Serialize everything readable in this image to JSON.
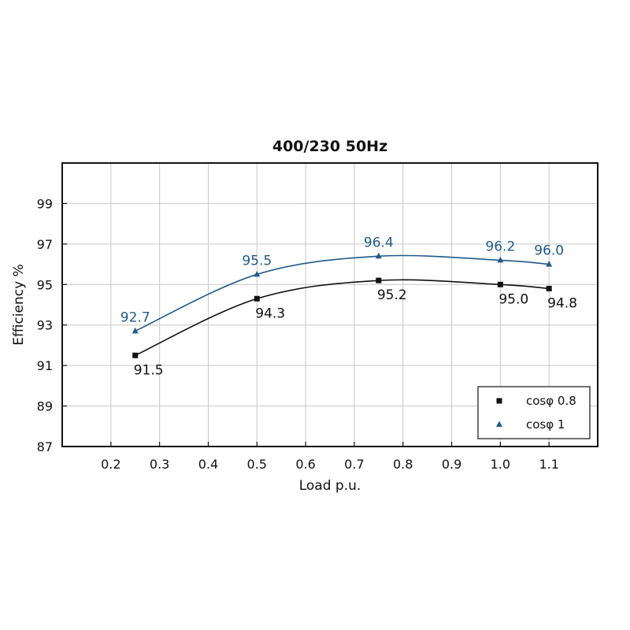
{
  "chart_data": {
    "type": "line",
    "title": "400/230 50Hz",
    "xlabel": "Load p.u.",
    "ylabel": "Efficiency %",
    "xlim": [
      0.1,
      1.2
    ],
    "ylim": [
      87,
      101
    ],
    "xticks": [
      "0.2",
      "0.3",
      "0.4",
      "0.5",
      "0.6",
      "0.7",
      "0.8",
      "0.9",
      "1.0",
      "1.1"
    ],
    "yticks": [
      "87",
      "89",
      "91",
      "93",
      "95",
      "97",
      "99"
    ],
    "grid": true,
    "legend_position": "bottom-right",
    "series": [
      {
        "name": "cosφ 0.8",
        "marker": "square",
        "color": "#111111",
        "x": [
          0.25,
          0.5,
          0.75,
          1.0,
          1.1
        ],
        "y": [
          91.5,
          94.3,
          95.2,
          95.0,
          94.8
        ],
        "labels": [
          "91.5",
          "94.3",
          "95.2",
          "95.0",
          "94.8"
        ]
      },
      {
        "name": "cosφ 1",
        "marker": "triangle",
        "color": "#1f5a8a",
        "x": [
          0.25,
          0.5,
          0.75,
          1.0,
          1.1
        ],
        "y": [
          92.7,
          95.5,
          96.4,
          96.2,
          96.0
        ],
        "labels": [
          "92.7",
          "95.5",
          "96.4",
          "96.2",
          "96.0"
        ]
      }
    ]
  }
}
